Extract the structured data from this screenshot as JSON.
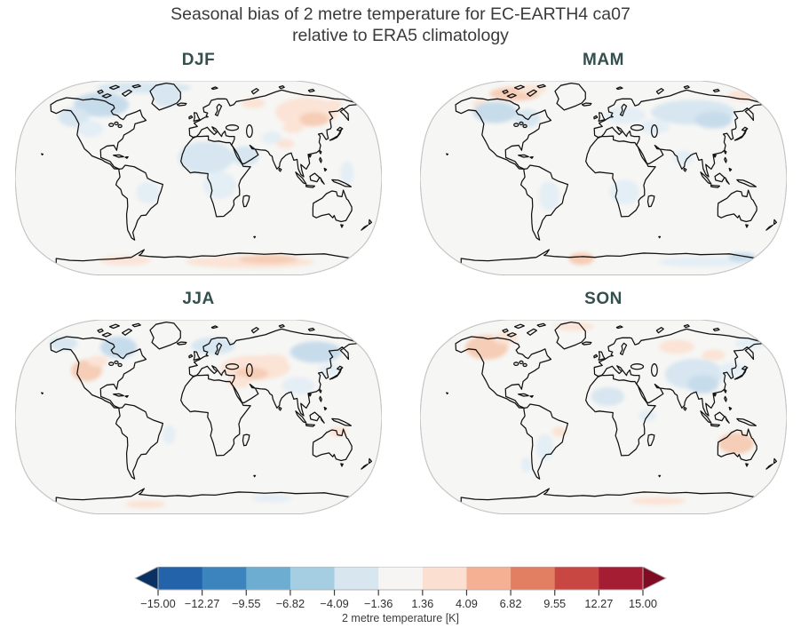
{
  "chart_data": {
    "type": "heatmap",
    "subtype": "global-map-grid",
    "projection": "Robinson",
    "title": "Seasonal bias of 2 metre temperature for EC-EARTH4 ca07",
    "subtitle": "relative to ERA5 climatology",
    "palette": {
      "B1": "#d7e6f0",
      "B2": "#c7dceb",
      "B3": "#e4eef5",
      "R1": "#fbe3d5",
      "R2": "#f6cdb6"
    },
    "panels": [
      {
        "label": "DJF",
        "patches": [
          [
            350,
            18,
            130,
            14,
            "B1"
          ],
          [
            235,
            62,
            75,
            32,
            "B2"
          ],
          [
            160,
            95,
            42,
            25,
            "B1"
          ],
          [
            413,
            40,
            38,
            28,
            "B1"
          ],
          [
            205,
            125,
            35,
            22,
            "B3"
          ],
          [
            520,
            200,
            75,
            42,
            "B1"
          ],
          [
            558,
            272,
            45,
            35,
            "B3"
          ],
          [
            627,
            196,
            38,
            26,
            "B1"
          ],
          [
            362,
            292,
            32,
            28,
            "B3"
          ],
          [
            700,
            148,
            28,
            16,
            "B3"
          ],
          [
            795,
            82,
            85,
            38,
            "R1"
          ],
          [
            815,
            100,
            40,
            18,
            "R2"
          ],
          [
            758,
            122,
            28,
            14,
            "R1"
          ],
          [
            650,
            58,
            32,
            14,
            "R1"
          ],
          [
            868,
            62,
            24,
            12,
            "R1"
          ],
          [
            640,
            472,
            175,
            16,
            "R1"
          ],
          [
            690,
            465,
            80,
            12,
            "R2"
          ],
          [
            300,
            468,
            70,
            12,
            "R1"
          ],
          [
            737,
            164,
            24,
            12,
            "R1"
          ],
          [
            905,
            240,
            18,
            30,
            "B3"
          ]
        ]
      },
      {
        "label": "MAM",
        "patches": [
          [
            258,
            34,
            68,
            18,
            "R2"
          ],
          [
            305,
            22,
            40,
            12,
            "R1"
          ],
          [
            885,
            38,
            45,
            14,
            "R1"
          ],
          [
            440,
            464,
            34,
            16,
            "R2"
          ],
          [
            168,
            60,
            24,
            12,
            "R1"
          ],
          [
            205,
            82,
            60,
            28,
            "B2"
          ],
          [
            292,
            98,
            35,
            24,
            "B1"
          ],
          [
            745,
            82,
            115,
            32,
            "B1"
          ],
          [
            800,
            102,
            50,
            22,
            "B2"
          ],
          [
            560,
            90,
            55,
            22,
            "B3"
          ],
          [
            640,
            120,
            40,
            18,
            "B3"
          ],
          [
            558,
            290,
            40,
            32,
            "B3"
          ],
          [
            352,
            300,
            28,
            38,
            "B3"
          ],
          [
            718,
            200,
            28,
            18,
            "B3"
          ],
          [
            770,
            472,
            120,
            13,
            "B3"
          ],
          [
            878,
            460,
            38,
            12,
            "B2"
          ]
        ]
      },
      {
        "label": "JJA",
        "patches": [
          [
            195,
            132,
            42,
            28,
            "R2"
          ],
          [
            225,
            108,
            28,
            14,
            "R1"
          ],
          [
            655,
            125,
            95,
            32,
            "R1"
          ],
          [
            645,
            140,
            45,
            16,
            "R2"
          ],
          [
            610,
            162,
            30,
            16,
            "R1"
          ],
          [
            702,
            105,
            40,
            15,
            "R1"
          ],
          [
            355,
            481,
            55,
            10,
            "R1"
          ],
          [
            882,
            292,
            24,
            14,
            "R1"
          ],
          [
            282,
            72,
            50,
            28,
            "B2"
          ],
          [
            132,
            62,
            38,
            18,
            "B1"
          ],
          [
            540,
            68,
            60,
            22,
            "B1"
          ],
          [
            820,
            84,
            70,
            28,
            "B2"
          ],
          [
            772,
            172,
            45,
            22,
            "B3"
          ],
          [
            858,
            130,
            30,
            15,
            "B3"
          ],
          [
            700,
            466,
            55,
            10,
            "B3"
          ],
          [
            420,
            300,
            18,
            24,
            "B3"
          ]
        ]
      },
      {
        "label": "SON",
        "patches": [
          [
            182,
            72,
            58,
            32,
            "R2"
          ],
          [
            232,
            48,
            34,
            15,
            "R1"
          ],
          [
            420,
            18,
            55,
            10,
            "R1"
          ],
          [
            700,
            70,
            48,
            18,
            "R1"
          ],
          [
            800,
            92,
            32,
            14,
            "R1"
          ],
          [
            862,
            322,
            48,
            28,
            "R2"
          ],
          [
            380,
            292,
            20,
            13,
            "R1"
          ],
          [
            650,
            472,
            75,
            10,
            "R1"
          ],
          [
            748,
            142,
            80,
            40,
            "B1"
          ],
          [
            772,
            168,
            42,
            24,
            "B2"
          ],
          [
            512,
            200,
            45,
            24,
            "B1"
          ],
          [
            340,
            332,
            24,
            34,
            "B3"
          ],
          [
            620,
            250,
            24,
            15,
            "B3"
          ],
          [
            850,
            130,
            35,
            18,
            "B3"
          ],
          [
            898,
            62,
            38,
            14,
            "B3"
          ],
          [
            290,
            378,
            14,
            20,
            "B3"
          ]
        ]
      }
    ],
    "colorbar": {
      "label": "2 metre temperature [K]",
      "range": [
        -15,
        15
      ],
      "tick_values": [
        -15.0,
        -12.27,
        -9.55,
        -6.82,
        -4.09,
        -1.36,
        1.36,
        4.09,
        6.82,
        9.55,
        12.27,
        15.0
      ],
      "tick_labels": [
        "−15.00",
        "−12.27",
        "−9.55",
        "−6.82",
        "−4.09",
        "−1.36",
        "1.36",
        "4.09",
        "6.82",
        "9.55",
        "12.27",
        "15.00"
      ],
      "segment_colors": [
        "#2263a9",
        "#3c84bd",
        "#6cadd1",
        "#a6cee3",
        "#d7e6ef",
        "#f6f5f3",
        "#fbdfd0",
        "#f5b093",
        "#e27e62",
        "#c84742",
        "#a51d32"
      ],
      "extend_low_color": "#0a3161",
      "extend_high_color": "#7f0c22"
    }
  },
  "style": {
    "title_color": "#3a3a3a",
    "panel_title_color": "#34504e",
    "map_fill": "#f6f6f4",
    "map_edge": "#c6c6c6",
    "coastline_color": "#111111",
    "colorbar_frame": "#b3b3b3",
    "tick_color": "#3c3c3c"
  }
}
